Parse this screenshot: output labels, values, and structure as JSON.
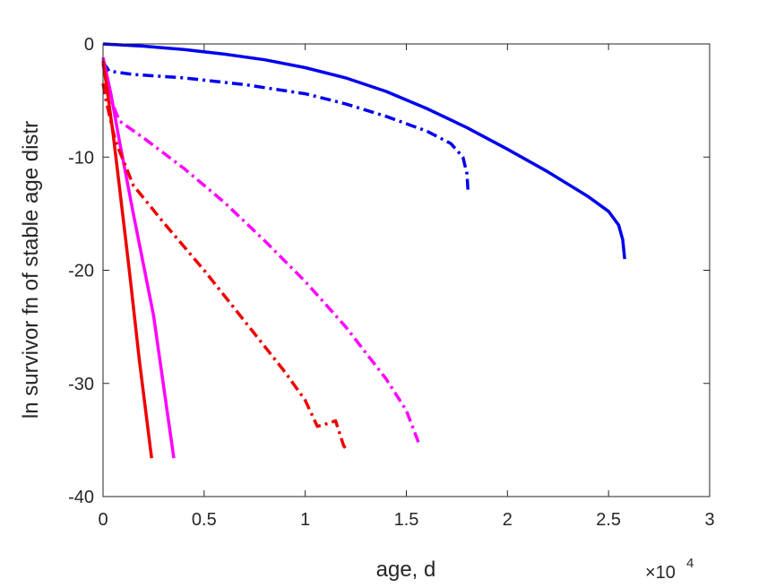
{
  "chart_data": {
    "type": "line",
    "title": "",
    "xlabel": "age, d",
    "ylabel": "ln survivor fn of stable age distr",
    "x_exponent_label": "×10",
    "x_exponent_power": "4",
    "xlim": [
      0,
      30000
    ],
    "ylim": [
      -40,
      0
    ],
    "grid": false,
    "legend": "none",
    "x_tick_values": [
      0,
      5000,
      10000,
      15000,
      20000,
      25000,
      30000
    ],
    "x_tick_labels": [
      "0",
      "0.5",
      "1",
      "1.5",
      "2",
      "2.5",
      "3"
    ],
    "y_tick_values": [
      0,
      -10,
      -20,
      -30,
      -40
    ],
    "y_tick_labels": [
      "0",
      "-10",
      "-20",
      "-30",
      "-40"
    ],
    "series": [
      {
        "color": "#0000ee",
        "line_style": "solid",
        "points": [
          [
            0,
            0
          ],
          [
            2000,
            -0.2
          ],
          [
            4000,
            -0.5
          ],
          [
            6000,
            -0.9
          ],
          [
            8000,
            -1.4
          ],
          [
            10000,
            -2.1
          ],
          [
            12000,
            -3.0
          ],
          [
            14000,
            -4.2
          ],
          [
            16000,
            -5.7
          ],
          [
            18000,
            -7.4
          ],
          [
            20000,
            -9.3
          ],
          [
            22000,
            -11.3
          ],
          [
            24000,
            -13.5
          ],
          [
            25000,
            -14.8
          ],
          [
            25500,
            -16.0
          ],
          [
            25700,
            -17.3
          ],
          [
            25800,
            -19.0
          ]
        ]
      },
      {
        "color": "#0000ee",
        "line_style": "dashdot",
        "points": [
          [
            0,
            -1.6
          ],
          [
            300,
            -2.4
          ],
          [
            1500,
            -2.7
          ],
          [
            4000,
            -3.0
          ],
          [
            7000,
            -3.6
          ],
          [
            10000,
            -4.4
          ],
          [
            12000,
            -5.3
          ],
          [
            14000,
            -6.4
          ],
          [
            16000,
            -7.7
          ],
          [
            17200,
            -8.8
          ],
          [
            17800,
            -10.0
          ],
          [
            18000,
            -11.5
          ],
          [
            18050,
            -13.0
          ]
        ]
      },
      {
        "color": "#ff00ff",
        "line_style": "solid",
        "points": [
          [
            0,
            -1.2
          ],
          [
            400,
            -4.5
          ],
          [
            800,
            -8.5
          ],
          [
            1500,
            -15.0
          ],
          [
            2500,
            -24.0
          ],
          [
            3500,
            -36.6
          ]
        ]
      },
      {
        "color": "#ff00ff",
        "line_style": "dashdot",
        "points": [
          [
            0,
            -1.8
          ],
          [
            300,
            -4.5
          ],
          [
            800,
            -6.8
          ],
          [
            2000,
            -8.3
          ],
          [
            4000,
            -11.0
          ],
          [
            6000,
            -14.0
          ],
          [
            8000,
            -17.4
          ],
          [
            10000,
            -21.0
          ],
          [
            12000,
            -25.0
          ],
          [
            14000,
            -29.6
          ],
          [
            15000,
            -32.4
          ],
          [
            15600,
            -35.2
          ]
        ]
      },
      {
        "color": "#ee0000",
        "line_style": "solid",
        "points": [
          [
            0,
            -1.5
          ],
          [
            200,
            -4.0
          ],
          [
            500,
            -8.0
          ],
          [
            800,
            -12.5
          ],
          [
            1300,
            -20.0
          ],
          [
            1800,
            -28.0
          ],
          [
            2400,
            -36.6
          ]
        ]
      },
      {
        "color": "#ee0000",
        "line_style": "dashdot",
        "points": [
          [
            0,
            -3.5
          ],
          [
            150,
            -5.0
          ],
          [
            600,
            -8.5
          ],
          [
            1500,
            -12.5
          ],
          [
            3000,
            -15.8
          ],
          [
            5000,
            -20.0
          ],
          [
            7000,
            -24.5
          ],
          [
            9000,
            -29.0
          ],
          [
            10000,
            -31.5
          ],
          [
            10600,
            -33.8
          ],
          [
            11200,
            -33.5
          ],
          [
            11500,
            -33.3
          ],
          [
            11900,
            -35.5
          ],
          [
            12100,
            -36.0
          ]
        ]
      }
    ]
  }
}
